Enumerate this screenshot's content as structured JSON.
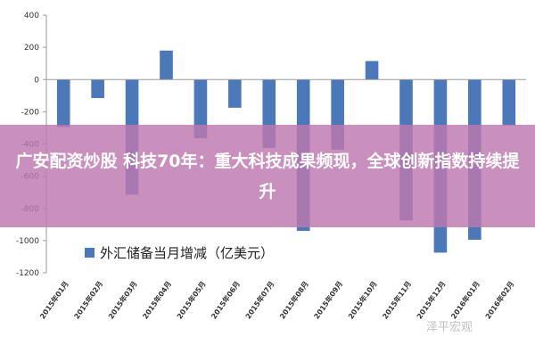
{
  "chart_data": {
    "type": "bar",
    "categories": [
      "2015年01月",
      "2015年02月",
      "2015年03月",
      "2015年04月",
      "2015年05月",
      "2015年06月",
      "2015年07月",
      "2015年08月",
      "2015年09月",
      "2015年10月",
      "2015年11月",
      "2015年12月",
      "2016年01月",
      "2016年02月"
    ],
    "series": [
      {
        "name": "外汇储备当月增减（亿美元）",
        "values": [
          -295,
          -115,
          -715,
          180,
          -365,
          -175,
          -425,
          -940,
          -435,
          115,
          -875,
          -1075,
          -995,
          -285
        ],
        "color": "#4a78b8"
      }
    ],
    "ylim": [
      -1200,
      400
    ],
    "yticks": [
      400,
      200,
      0,
      -200,
      -400,
      -600,
      -800,
      -1000,
      -1200
    ],
    "ytick_labels": [
      "400",
      "200",
      "0",
      "-200",
      "-400",
      "-600",
      "-800",
      "-1000",
      "-1200"
    ],
    "grid": false,
    "legend_position": "bottom-left"
  },
  "overlay": {
    "headline": "广安配资炒股 科技70年：重大科技成果频现，全球创新指数持续提升",
    "color": "#be78af"
  },
  "watermark": "泽平宏观"
}
